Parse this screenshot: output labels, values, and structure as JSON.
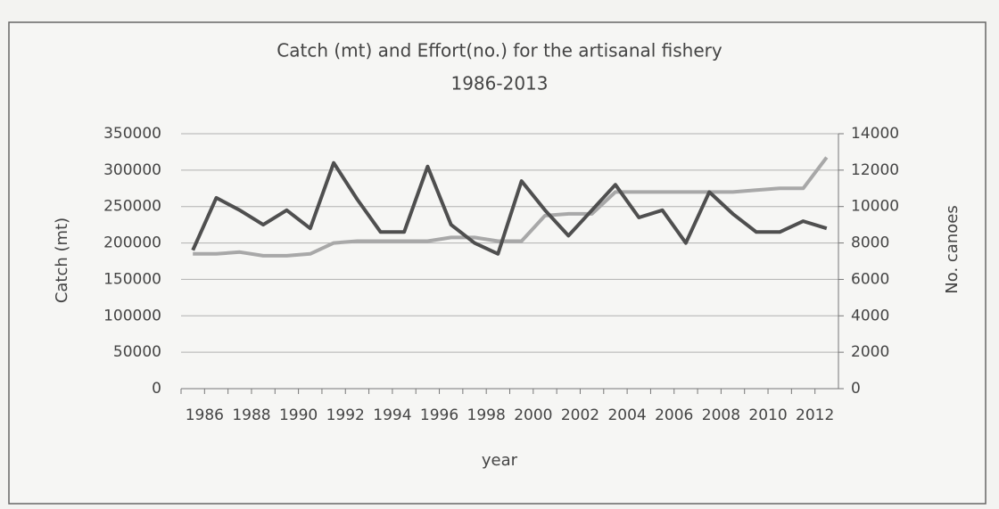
{
  "chart_data": {
    "type": "line",
    "title": "Catch (mt) and Effort(no.) for the artisanal fishery",
    "subtitle": "1986-2013",
    "x_label": "year",
    "y_label": "Catch (mt)",
    "y2_label": "No. canoes",
    "categories": [
      "1986",
      null,
      "1988",
      null,
      "1990",
      null,
      "1992",
      null,
      "1994",
      null,
      "1996",
      null,
      "1998",
      null,
      "2000",
      null,
      "2002",
      null,
      "2004",
      null,
      "2006",
      null,
      "2008",
      null,
      "2010",
      null,
      "2012",
      null
    ],
    "series": [
      {
        "name": "Catch",
        "color": "#4f4f4f",
        "values": [
          190000,
          262000,
          245000,
          225000,
          245000,
          220000,
          310000,
          260000,
          215000,
          215000,
          305000,
          225000,
          200000,
          185000,
          285000,
          245000,
          210000,
          245000,
          280000,
          235000,
          245000,
          200000,
          270000,
          240000,
          215000,
          215000,
          230000,
          220000
        ]
      },
      {
        "name": "Canoes",
        "color": "#a8a8a8",
        "axis": "y2",
        "values": [
          7400,
          7400,
          7500,
          7300,
          7300,
          7400,
          8000,
          8100,
          8100,
          8100,
          8100,
          8300,
          8300,
          8100,
          8100,
          9500,
          9600,
          9600,
          10800,
          10800,
          10800,
          10800,
          10800,
          10800,
          10900,
          11000,
          11000,
          12700
        ]
      }
    ],
    "ylim": [
      0,
      350000
    ],
    "yticks": [
      0,
      50000,
      100000,
      150000,
      200000,
      250000,
      300000,
      350000
    ],
    "y2lim": [
      0,
      14000
    ],
    "y2ticks": [
      0,
      2000,
      4000,
      6000,
      8000,
      10000,
      12000,
      14000
    ],
    "grid": true
  }
}
